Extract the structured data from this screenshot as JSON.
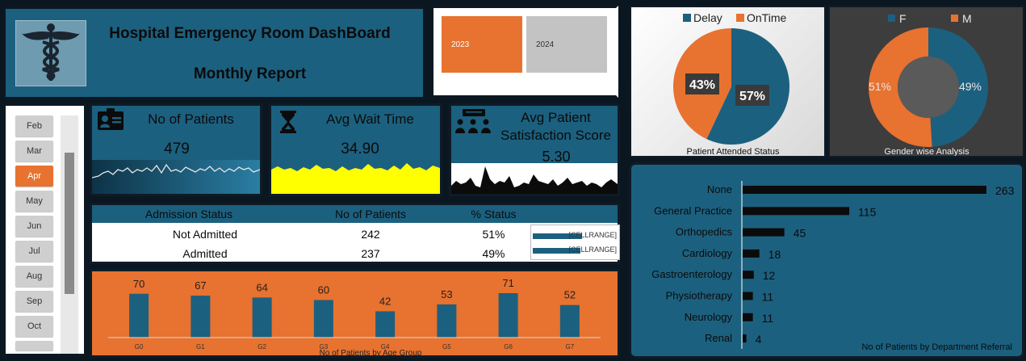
{
  "header": {
    "title": "Hospital Emergency Room DashBoard",
    "subtitle": "Monthly Report",
    "logo_icon": "caduceus-icon"
  },
  "year_slicer": {
    "options": [
      "2023",
      "2024"
    ],
    "selected": "2023"
  },
  "month_slicer": {
    "options": [
      "Feb",
      "Mar",
      "Apr",
      "May",
      "Jun",
      "Jul",
      "Aug",
      "Sep",
      "Oct"
    ],
    "selected": "Apr"
  },
  "kpis": {
    "patients": {
      "label": "No of Patients",
      "value": "479",
      "icon": "id-card-icon"
    },
    "wait": {
      "label": "Avg Wait Time",
      "value": "34.90",
      "icon": "hourglass-icon"
    },
    "satisfaction": {
      "label_line1": "Avg Patient",
      "label_line2": "Satisfaction Score",
      "value": "5.30",
      "icon": "group-meeting-icon"
    }
  },
  "admission": {
    "headers": [
      "Admission Status",
      "No of Patients",
      "% Status"
    ],
    "rows": [
      {
        "status": "Not Admitted",
        "count": "242",
        "pct": "51%",
        "bar_text": "[CELLRANGE]",
        "bar_fraction": 0.51
      },
      {
        "status": "Admitted",
        "count": "237",
        "pct": "49%",
        "bar_text": "[CELLRANGE]",
        "bar_fraction": 0.49
      }
    ]
  },
  "colors": {
    "primary_blue": "#1c607f",
    "accent_orange": "#e8722f",
    "kpi_yellow": "#ffff00"
  },
  "chart_data": [
    {
      "type": "bar",
      "title": "No of Patients by Age Group",
      "categories": [
        "G0",
        "G1",
        "G2",
        "G3",
        "G4",
        "G5",
        "G6",
        "G7"
      ],
      "values": [
        70,
        67,
        64,
        60,
        42,
        53,
        71,
        52
      ],
      "ylim": [
        0,
        80
      ],
      "grid": false
    },
    {
      "type": "pie",
      "title": "Patient Attended Status",
      "legend": [
        "Delay",
        "OnTime"
      ],
      "legend_position": "top",
      "labels": [
        "57%",
        "43%"
      ],
      "values": [
        57,
        43
      ],
      "colors": [
        "#1c607f",
        "#e8722f"
      ]
    },
    {
      "type": "pie",
      "variant": "donut",
      "title": "Gender wise Analysis",
      "legend": [
        "F",
        "M"
      ],
      "legend_position": "top",
      "labels": [
        "49%",
        "51%"
      ],
      "values": [
        49,
        51
      ],
      "colors": [
        "#1c607f",
        "#e8722f"
      ]
    },
    {
      "type": "bar",
      "orientation": "horizontal",
      "title": "No of  Patients by  Department Referral",
      "categories": [
        "None",
        "General Practice",
        "Orthopedics",
        "Cardiology",
        "Gastroenterology",
        "Physiotherapy",
        "Neurology",
        "Renal"
      ],
      "values": [
        263,
        115,
        45,
        18,
        12,
        11,
        11,
        4
      ],
      "xlim": [
        0,
        263
      ]
    }
  ]
}
